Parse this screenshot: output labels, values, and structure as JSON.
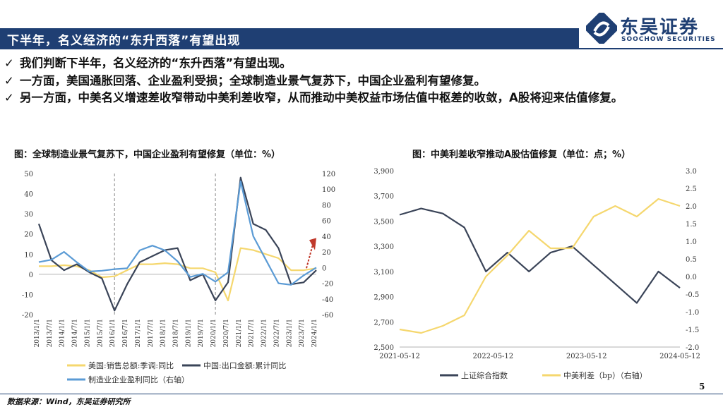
{
  "header": {
    "title": "下半年，名义经济的“东升西落”有望出现"
  },
  "logo": {
    "cn": "东吴证券",
    "en": "SOOCHOW SECURITIES",
    "icon": "soochow-logo-icon",
    "color": "#1f3f73"
  },
  "bullets": [
    "我们判断下半年，名义经济的“东升西落”有望出现。",
    "一方面，美国通胀回落、企业盈利受损；全球制造业景气复苏下，中国企业盈利有望修复。",
    "另一方面，中美名义增速差收窄带动中美利差收窄，从而推动中美权益市场估值中枢差的收敛，A股将迎来估值修复。"
  ],
  "chart_data": [
    {
      "type": "line",
      "title": "图：全球制造业景气复苏下，中国企业盈利有望修复（单位：%）",
      "x": [
        "2013/1/1",
        "2013/7/1",
        "2014/1/1",
        "2014/7/1",
        "2015/1/1",
        "2015/7/1",
        "2016/1/1",
        "2016/7/1",
        "2017/1/1",
        "2017/7/1",
        "2018/1/1",
        "2018/7/1",
        "2019/1/1",
        "2019/7/1",
        "2020/1/1",
        "2020/7/1",
        "2021/1/1",
        "2021/7/1",
        "2022/1/1",
        "2022/7/1",
        "2023/1/1",
        "2023/7/1",
        "2024/1/1"
      ],
      "ylim": [
        -20,
        50
      ],
      "y2lim": [
        -60,
        120
      ],
      "yticks": [
        "50",
        "40",
        "30",
        "20",
        "10",
        "0",
        "-10",
        "-20"
      ],
      "y2ticks": [
        "120",
        "100",
        "80",
        "60",
        "40",
        "20",
        "0",
        "-20",
        "-40",
        "-60"
      ],
      "vlines": [
        "2016/1/1",
        "2020/1/1"
      ],
      "annotation": "upward-arrow",
      "series": [
        {
          "name": "美国:销售总额:季调:同比",
          "color": "#f5d76e",
          "axis": "left",
          "values": [
            4,
            4,
            4.5,
            4,
            2,
            -1.5,
            -1,
            2,
            5,
            5,
            5.5,
            5,
            3,
            3,
            1,
            -13,
            13,
            12,
            10,
            8,
            2,
            2,
            3
          ]
        },
        {
          "name": "中国:出口金额:累计同比",
          "color": "#3a4458",
          "axis": "left",
          "values": [
            25,
            7,
            2,
            5,
            1,
            -2,
            -18,
            -5,
            6,
            9,
            12,
            13,
            -3,
            0,
            -13,
            -4,
            48,
            25,
            22,
            13,
            -5,
            -4,
            2
          ]
        },
        {
          "name": "制造业企业盈利同比（右轴）",
          "color": "#5b9bd5",
          "axis": "right",
          "values": [
            7,
            10,
            20,
            7,
            -5,
            -4,
            -2,
            -1,
            22,
            28,
            22,
            8,
            -12,
            -8,
            -18,
            -6,
            110,
            40,
            10,
            -20,
            -22,
            -10,
            0
          ]
        }
      ]
    },
    {
      "type": "line",
      "title": "图：中美利差收窄推动A股估值修复（单位：点；%）",
      "x": [
        "2021-05",
        "2021-08",
        "2021-11",
        "2022-02",
        "2022-05",
        "2022-08",
        "2022-11",
        "2023-02",
        "2023-05",
        "2023-08",
        "2023-11",
        "2024-02",
        "2024-05",
        "2024-07"
      ],
      "xticks": [
        "2021-05-12",
        "2022-05-12",
        "2023-05-12",
        "2024-05-12"
      ],
      "ylim": [
        2500,
        3900
      ],
      "y2lim": [
        -2.0,
        3.0
      ],
      "yticks": [
        "3,900",
        "3,700",
        "3,500",
        "3,300",
        "3,100",
        "2,900",
        "2,700",
        "2,500"
      ],
      "y2ticks": [
        "3.0",
        "2.5",
        "2.0",
        "1.5",
        "1.0",
        "0.5",
        "0.0",
        "-0.5",
        "-1.0",
        "-1.5",
        "-2.0"
      ],
      "series": [
        {
          "name": "上证综合指数",
          "color": "#3a4458",
          "axis": "left",
          "values": [
            3550,
            3600,
            3560,
            3450,
            3100,
            3250,
            3100,
            3250,
            3300,
            3150,
            3000,
            2850,
            3100,
            2970
          ]
        },
        {
          "name": "中美利差（bp）（右轴）",
          "color": "#f5d76e",
          "axis": "right",
          "values": [
            -1.5,
            -1.6,
            -1.4,
            -1.1,
            0.0,
            0.6,
            1.3,
            0.8,
            0.8,
            1.7,
            2.0,
            1.7,
            2.2,
            2.0
          ]
        }
      ]
    }
  ],
  "footer": {
    "source": "数据来源：Wind，东吴证券研究所",
    "page": "5"
  }
}
